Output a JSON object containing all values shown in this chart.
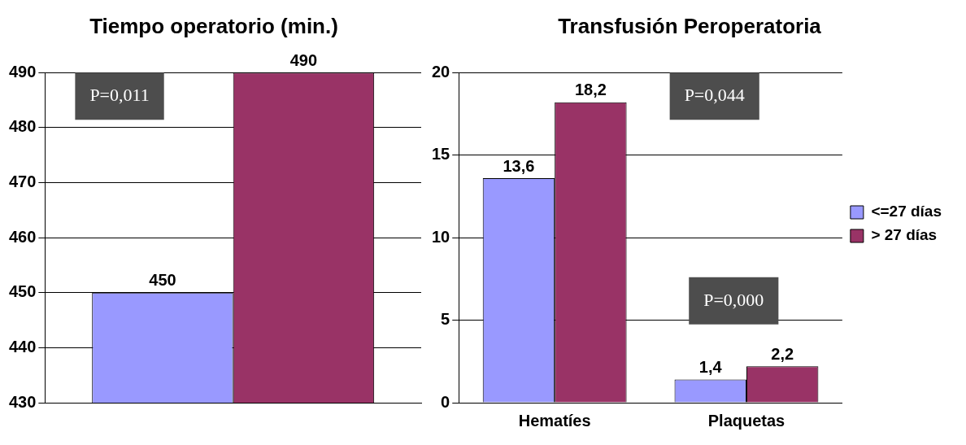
{
  "chart_data": [
    {
      "type": "bar",
      "title": "Tiempo operatorio (min.)",
      "categories": [
        null
      ],
      "series": [
        {
          "color": "#9999ff",
          "values": [
            450
          ],
          "value_labels": [
            "450"
          ]
        },
        {
          "color": "#993366",
          "values": [
            490
          ],
          "value_labels": [
            "490"
          ]
        }
      ],
      "ylim": [
        430,
        490
      ],
      "yticks": [
        430,
        440,
        450,
        460,
        470,
        480,
        490
      ],
      "grid": "y",
      "legend": false,
      "annotations": [
        "P=0,011"
      ]
    },
    {
      "type": "bar",
      "title": "Transfusión Peroperatoria",
      "categories": [
        "Hematíes",
        "Plaquetas"
      ],
      "series": [
        {
          "name": "<=27 días",
          "color": "#9999ff",
          "values": [
            13.6,
            1.4
          ],
          "value_labels": [
            "13,6",
            "1,4"
          ]
        },
        {
          "name": "> 27 días",
          "color": "#993366",
          "values": [
            18.2,
            2.2
          ],
          "value_labels": [
            "18,2",
            "2,2"
          ]
        }
      ],
      "ylim": [
        0,
        20
      ],
      "yticks": [
        0,
        5,
        10,
        15,
        20
      ],
      "grid": "y",
      "legend": "right",
      "annotations": [
        "P=0,044",
        "P=0,000"
      ]
    }
  ]
}
